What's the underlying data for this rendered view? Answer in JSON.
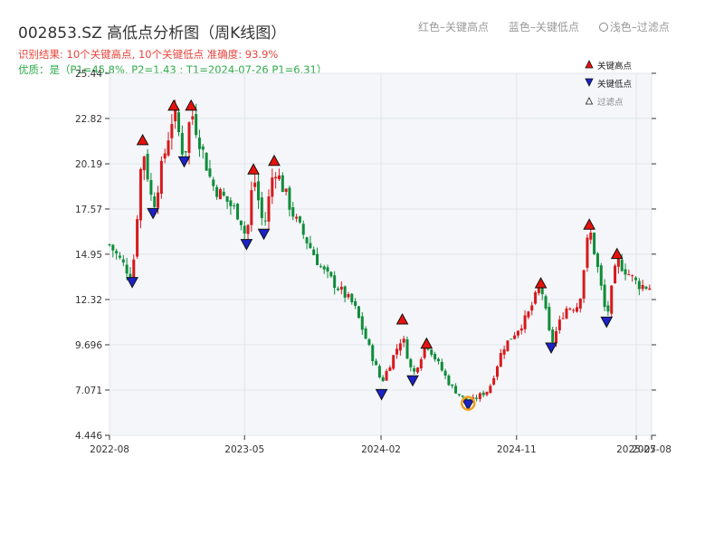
{
  "title": "002853.SZ 高低点分析图（周K线图）",
  "top_legend": {
    "red": "红色–关键高点",
    "blue": "蓝色–关键低点",
    "light": "浅色–过滤点"
  },
  "result_line": "识别结果: 10个关键高点, 10个关键低点   准确度: 93.9%",
  "quality_line": "优质：是（P1=45.8%, P2=1.43 ; T1=2024-07-26 P1=6.31）",
  "legend": {
    "high": "关键高点",
    "low": "关键低点",
    "filtered": "过滤点"
  },
  "colors": {
    "up": "#d7191c",
    "down": "#0f8c3a",
    "high_marker": "#e8120c",
    "low_marker": "#1a22c8",
    "highlight": "#f0a020",
    "plot_bg": "#f4f6f9",
    "grid": "#e2e5ea"
  },
  "chart_data": {
    "type": "candlestick",
    "interval": "weekly",
    "ylim": [
      4.446,
      25.44
    ],
    "yticks": [
      "4.446",
      "7.071",
      "9.696",
      "12.32",
      "14.95",
      "17.57",
      "20.19",
      "22.82",
      "25.44"
    ],
    "xticks": [
      "2022-08",
      "2023-05",
      "2024-02",
      "2024-11",
      "2025-07",
      "2025-08"
    ],
    "xtick_dates": [
      "2022-08-01",
      "2023-05-01",
      "2024-02-01",
      "2024-11-01",
      "2025-07-01",
      "2025-08-01"
    ],
    "xlim": [
      "2022-08-01",
      "2025-08-01"
    ],
    "anchors": [
      [
        "2022-08-01",
        15.5
      ],
      [
        "2022-09-16",
        13.6
      ],
      [
        "2022-10-07",
        21.3
      ],
      [
        "2022-10-28",
        17.6
      ],
      [
        "2022-12-09",
        23.3
      ],
      [
        "2022-12-30",
        20.5
      ],
      [
        "2023-01-13",
        23.3
      ],
      [
        "2023-02-24",
        19.0
      ],
      [
        "2023-04-21",
        17.2
      ],
      [
        "2023-05-05",
        15.8
      ],
      [
        "2023-05-19",
        19.6
      ],
      [
        "2023-06-09",
        16.4
      ],
      [
        "2023-06-30",
        20.1
      ],
      [
        "2023-08-11",
        17.0
      ],
      [
        "2023-10-06",
        14.0
      ],
      [
        "2023-12-08",
        12.0
      ],
      [
        "2024-02-02",
        7.5
      ],
      [
        "2024-03-15",
        10.2
      ],
      [
        "2024-04-05",
        7.9
      ],
      [
        "2024-05-03",
        9.8
      ],
      [
        "2024-06-21",
        7.3
      ],
      [
        "2024-07-26",
        6.3
      ],
      [
        "2024-09-06",
        7.1
      ],
      [
        "2024-10-04",
        9.5
      ],
      [
        "2024-11-22",
        11.3
      ],
      [
        "2024-12-20",
        13.2
      ],
      [
        "2025-01-10",
        9.7
      ],
      [
        "2025-02-07",
        11.8
      ],
      [
        "2025-03-07",
        12.0
      ],
      [
        "2025-03-28",
        16.5
      ],
      [
        "2025-04-11",
        14.6
      ],
      [
        "2025-05-02",
        11.2
      ],
      [
        "2025-05-23",
        14.6
      ],
      [
        "2025-07-04",
        13.2
      ],
      [
        "2025-08-01",
        13.0
      ]
    ],
    "key_highs": [
      {
        "date": "2022-10-07",
        "price": 21.3
      },
      {
        "date": "2022-12-09",
        "price": 23.3
      },
      {
        "date": "2023-01-13",
        "price": 23.3
      },
      {
        "date": "2023-05-19",
        "price": 19.6
      },
      {
        "date": "2023-06-30",
        "price": 20.1
      },
      {
        "date": "2024-03-15",
        "price": 10.9
      },
      {
        "date": "2024-05-03",
        "price": 9.5
      },
      {
        "date": "2024-12-20",
        "price": 13.0
      },
      {
        "date": "2025-03-28",
        "price": 16.4
      },
      {
        "date": "2025-05-23",
        "price": 14.7
      }
    ],
    "key_lows": [
      {
        "date": "2022-09-16",
        "price": 13.6
      },
      {
        "date": "2022-10-28",
        "price": 17.6
      },
      {
        "date": "2022-12-30",
        "price": 20.6
      },
      {
        "date": "2023-05-05",
        "price": 15.8
      },
      {
        "date": "2023-06-09",
        "price": 16.4
      },
      {
        "date": "2024-02-02",
        "price": 7.1
      },
      {
        "date": "2024-04-05",
        "price": 7.9
      },
      {
        "date": "2024-07-26",
        "price": 6.5
      },
      {
        "date": "2025-01-10",
        "price": 9.8
      },
      {
        "date": "2025-05-02",
        "price": 11.3
      }
    ],
    "highlight": {
      "date": "2024-07-26",
      "price": 6.3
    }
  }
}
